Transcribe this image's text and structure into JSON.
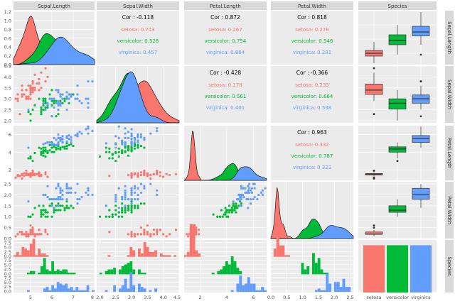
{
  "chart_data": {
    "type": "scatter",
    "title": "",
    "variables": [
      "Sepal.Length",
      "Sepal.Width",
      "Petal.Length",
      "Petal.Width",
      "Species"
    ],
    "species": [
      "setosa",
      "versicolor",
      "virginica"
    ],
    "colors": {
      "setosa": "#F8766D",
      "versicolor": "#00BA38",
      "virginica": "#619CFF",
      "panel_bg": "#EBEBEB",
      "strip_bg": "#D9D9D9",
      "grid": "#FFFFFF"
    },
    "ranges": {
      "Sepal.Length": [
        4.2,
        8.0
      ],
      "Sepal.Width": [
        1.9,
        4.5
      ],
      "Petal.Length": [
        0.8,
        7.0
      ],
      "Petal.Width": [
        0.0,
        2.6
      ]
    },
    "ticks": {
      "Sepal.Length": [
        "5",
        "6",
        "7",
        "8"
      ],
      "Sepal.Width": [
        "2.0",
        "2.5",
        "3.0",
        "3.5",
        "4.0",
        "4.5"
      ],
      "Petal.Length": [
        "2",
        "4",
        "6"
      ],
      "Petal.Width": [
        "0.0",
        "0.5",
        "1.0",
        "1.5",
        "2.0",
        "2.5"
      ],
      "Species": [
        "setosa",
        "versicolor",
        "virginica"
      ]
    },
    "diag_density_ticks": [
      "0.0",
      "0.2",
      "0.4",
      "0.6",
      "0.8",
      "1.0",
      "1.2"
    ],
    "hist_count_ticks": [
      "0.0",
      "2.5",
      "5.0",
      "7.5"
    ],
    "correlations": [
      {
        "row": 0,
        "col": 1,
        "total": "Cor : -0.118",
        "setosa": "setosa: 0.743",
        "versicolor": "versicolor: 0.526",
        "virginica": "virginica: 0.457"
      },
      {
        "row": 0,
        "col": 2,
        "total": "Cor : 0.872",
        "setosa": "setosa: 0.267",
        "versicolor": "versicolor: 0.754",
        "virginica": "virginica: 0.864"
      },
      {
        "row": 0,
        "col": 3,
        "total": "Cor : 0.818",
        "setosa": "setosa: 0.278",
        "versicolor": "versicolor: 0.546",
        "virginica": "virginica: 0.281"
      },
      {
        "row": 1,
        "col": 2,
        "total": "Cor : -0.428",
        "setosa": "setosa: 0.178",
        "versicolor": "versicolor: 0.561",
        "virginica": "virginica: 0.401"
      },
      {
        "row": 1,
        "col": 3,
        "total": "Cor : -0.366",
        "setosa": "setosa: 0.233",
        "versicolor": "versicolor: 0.664",
        "virginica": "virginica: 0.538"
      },
      {
        "row": 2,
        "col": 3,
        "total": "Cor : 0.963",
        "setosa": "setosa: 0.332",
        "versicolor": "versicolor: 0.787",
        "virginica": "virginica: 0.322"
      }
    ],
    "points": {
      "Sepal.Length": {
        "setosa": [
          5.1,
          4.9,
          4.7,
          4.6,
          5.0,
          5.4,
          4.6,
          5.0,
          4.4,
          4.9,
          5.4,
          4.8,
          4.8,
          4.3,
          5.8,
          5.7,
          5.4,
          5.1,
          5.7,
          5.1,
          5.4,
          5.1,
          4.6,
          5.1,
          4.8,
          5.0,
          5.0,
          5.2,
          5.2,
          4.7,
          4.8,
          5.4,
          5.2,
          5.5,
          4.9,
          5.0,
          5.5,
          4.9,
          4.4,
          5.1,
          5.0,
          4.5,
          4.4,
          5.0,
          5.1,
          4.8,
          5.1,
          4.6,
          5.3,
          5.0
        ],
        "versicolor": [
          7.0,
          6.4,
          6.9,
          5.5,
          6.5,
          5.7,
          6.3,
          4.9,
          6.6,
          5.2,
          5.0,
          5.9,
          6.0,
          6.1,
          5.6,
          6.7,
          5.6,
          5.8,
          6.2,
          5.6,
          5.9,
          6.1,
          6.3,
          6.1,
          6.4,
          6.6,
          6.8,
          6.7,
          6.0,
          5.7,
          5.5,
          5.5,
          5.8,
          6.0,
          5.4,
          6.0,
          6.7,
          6.3,
          5.6,
          5.5,
          5.5,
          6.1,
          5.8,
          5.0,
          5.6,
          5.7,
          5.7,
          6.2,
          5.1,
          5.7
        ],
        "virginica": [
          6.3,
          5.8,
          7.1,
          6.3,
          6.5,
          7.6,
          4.9,
          7.3,
          6.7,
          7.2,
          6.5,
          6.4,
          6.8,
          5.7,
          5.8,
          6.4,
          6.5,
          7.7,
          7.7,
          6.0,
          6.9,
          5.6,
          7.7,
          6.3,
          6.7,
          7.2,
          6.2,
          6.1,
          6.4,
          7.2,
          7.4,
          7.9,
          6.4,
          6.3,
          6.1,
          7.7,
          6.3,
          6.4,
          6.0,
          6.9,
          6.7,
          6.9,
          5.8,
          6.8,
          6.7,
          6.7,
          6.3,
          6.5,
          6.2,
          5.9
        ]
      },
      "Sepal.Width": {
        "setosa": [
          3.5,
          3.0,
          3.2,
          3.1,
          3.6,
          3.9,
          3.4,
          3.4,
          2.9,
          3.1,
          3.7,
          3.4,
          3.0,
          3.0,
          4.0,
          4.4,
          3.9,
          3.5,
          3.8,
          3.8,
          3.4,
          3.7,
          3.6,
          3.3,
          3.4,
          3.0,
          3.4,
          3.5,
          3.4,
          3.2,
          3.1,
          3.4,
          4.1,
          4.2,
          3.1,
          3.2,
          3.5,
          3.6,
          3.0,
          3.4,
          3.5,
          2.3,
          3.2,
          3.5,
          3.8,
          3.0,
          3.8,
          3.2,
          3.7,
          3.3
        ],
        "versicolor": [
          3.2,
          3.2,
          3.1,
          2.3,
          2.8,
          2.8,
          3.3,
          2.4,
          2.9,
          2.7,
          2.0,
          3.0,
          2.2,
          2.9,
          2.9,
          3.1,
          3.0,
          2.7,
          2.2,
          2.5,
          3.2,
          2.8,
          2.5,
          2.8,
          2.9,
          3.0,
          2.8,
          3.0,
          2.9,
          2.6,
          2.4,
          2.4,
          2.7,
          2.7,
          3.0,
          3.4,
          3.1,
          2.3,
          3.0,
          2.5,
          2.6,
          3.0,
          2.6,
          2.3,
          2.7,
          3.0,
          2.9,
          2.9,
          2.5,
          2.8
        ],
        "virginica": [
          3.3,
          2.7,
          3.0,
          2.9,
          3.0,
          3.0,
          2.5,
          2.9,
          2.5,
          3.6,
          3.2,
          2.7,
          3.0,
          2.5,
          2.8,
          3.2,
          3.0,
          3.8,
          2.6,
          2.2,
          3.2,
          2.8,
          2.8,
          2.7,
          3.3,
          3.2,
          2.8,
          3.0,
          2.8,
          3.0,
          2.8,
          3.8,
          2.8,
          2.8,
          2.6,
          3.0,
          3.4,
          3.1,
          3.0,
          3.1,
          3.1,
          3.1,
          2.7,
          3.2,
          3.3,
          3.0,
          2.5,
          3.0,
          3.4,
          3.0
        ]
      },
      "Petal.Length": {
        "setosa": [
          1.4,
          1.4,
          1.3,
          1.5,
          1.4,
          1.7,
          1.4,
          1.5,
          1.4,
          1.5,
          1.5,
          1.6,
          1.4,
          1.1,
          1.2,
          1.5,
          1.3,
          1.4,
          1.7,
          1.5,
          1.7,
          1.5,
          1.0,
          1.7,
          1.9,
          1.6,
          1.6,
          1.5,
          1.4,
          1.6,
          1.6,
          1.5,
          1.5,
          1.4,
          1.5,
          1.2,
          1.3,
          1.4,
          1.3,
          1.5,
          1.3,
          1.3,
          1.3,
          1.6,
          1.9,
          1.4,
          1.6,
          1.4,
          1.5,
          1.4
        ],
        "versicolor": [
          4.7,
          4.5,
          4.9,
          4.0,
          4.6,
          4.5,
          4.7,
          3.3,
          4.6,
          3.9,
          3.5,
          4.2,
          4.0,
          4.7,
          3.6,
          4.4,
          4.5,
          4.1,
          4.5,
          3.9,
          4.8,
          4.0,
          4.9,
          4.7,
          4.3,
          4.4,
          4.8,
          5.0,
          4.5,
          3.5,
          3.8,
          3.7,
          3.9,
          5.1,
          4.5,
          4.5,
          4.7,
          4.4,
          4.1,
          4.0,
          4.4,
          4.6,
          4.0,
          3.3,
          4.2,
          4.2,
          4.2,
          4.3,
          3.0,
          4.1
        ],
        "virginica": [
          6.0,
          5.1,
          5.9,
          5.6,
          5.8,
          6.6,
          4.5,
          6.3,
          5.8,
          6.1,
          5.1,
          5.3,
          5.5,
          5.0,
          5.1,
          5.3,
          5.5,
          6.7,
          6.9,
          5.0,
          5.7,
          4.9,
          6.7,
          4.9,
          5.7,
          6.0,
          4.8,
          4.9,
          5.6,
          5.8,
          6.1,
          6.4,
          5.6,
          5.1,
          5.6,
          6.1,
          5.6,
          5.5,
          4.8,
          5.4,
          5.6,
          5.1,
          5.1,
          5.9,
          5.7,
          5.2,
          5.0,
          5.2,
          5.4,
          5.1
        ]
      },
      "Petal.Width": {
        "setosa": [
          0.2,
          0.2,
          0.2,
          0.2,
          0.2,
          0.4,
          0.3,
          0.2,
          0.2,
          0.1,
          0.2,
          0.2,
          0.1,
          0.1,
          0.2,
          0.4,
          0.4,
          0.3,
          0.3,
          0.3,
          0.2,
          0.4,
          0.2,
          0.5,
          0.2,
          0.2,
          0.4,
          0.2,
          0.2,
          0.2,
          0.2,
          0.4,
          0.1,
          0.2,
          0.2,
          0.2,
          0.2,
          0.1,
          0.2,
          0.2,
          0.3,
          0.3,
          0.2,
          0.6,
          0.4,
          0.3,
          0.2,
          0.2,
          0.2,
          0.2
        ],
        "versicolor": [
          1.4,
          1.5,
          1.5,
          1.3,
          1.5,
          1.3,
          1.6,
          1.0,
          1.3,
          1.4,
          1.0,
          1.5,
          1.0,
          1.4,
          1.3,
          1.4,
          1.5,
          1.0,
          1.5,
          1.1,
          1.8,
          1.3,
          1.5,
          1.2,
          1.3,
          1.4,
          1.4,
          1.7,
          1.5,
          1.0,
          1.1,
          1.0,
          1.2,
          1.6,
          1.5,
          1.6,
          1.5,
          1.3,
          1.3,
          1.3,
          1.2,
          1.4,
          1.2,
          1.0,
          1.3,
          1.2,
          1.3,
          1.3,
          1.1,
          1.3
        ],
        "virginica": [
          2.5,
          1.9,
          2.1,
          1.8,
          2.2,
          2.1,
          1.7,
          1.8,
          1.8,
          2.5,
          2.0,
          1.9,
          2.1,
          2.0,
          2.4,
          2.3,
          1.8,
          2.2,
          2.3,
          1.5,
          2.3,
          2.0,
          2.0,
          1.8,
          2.1,
          1.8,
          1.8,
          1.8,
          2.1,
          1.6,
          1.9,
          2.0,
          2.2,
          1.5,
          1.4,
          2.3,
          2.4,
          1.8,
          1.8,
          2.1,
          2.4,
          2.3,
          1.9,
          2.3,
          2.5,
          2.3,
          1.9,
          2.0,
          2.3,
          1.8
        ]
      }
    },
    "species_counts": {
      "setosa": 50,
      "versicolor": 50,
      "virginica": 50
    },
    "legend": "none",
    "grid": true
  }
}
